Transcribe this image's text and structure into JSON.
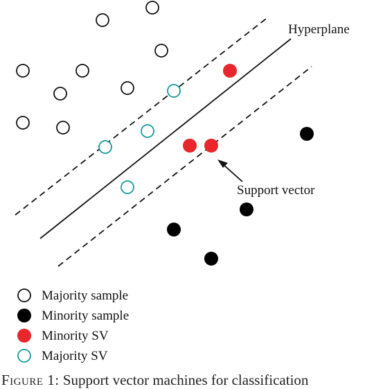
{
  "colors": {
    "majority_stroke": "#111111",
    "minority_fill": "#000000",
    "minority_sv_fill": "#e8262b",
    "majority_sv_stroke": "#159a9a",
    "line": "#111111"
  },
  "labels": {
    "hyperplane": "Hyperplane",
    "support_vector": "Support vector"
  },
  "legend": [
    {
      "kind": "majority",
      "label": "Majority sample"
    },
    {
      "kind": "minority",
      "label": "Minority sample"
    },
    {
      "kind": "minority_sv",
      "label": "Minority SV"
    },
    {
      "kind": "majority_sv",
      "label": "Majority SV"
    }
  ],
  "caption": {
    "prefix": "Figure 1:",
    "text": "Support vector machines for classification"
  }
}
